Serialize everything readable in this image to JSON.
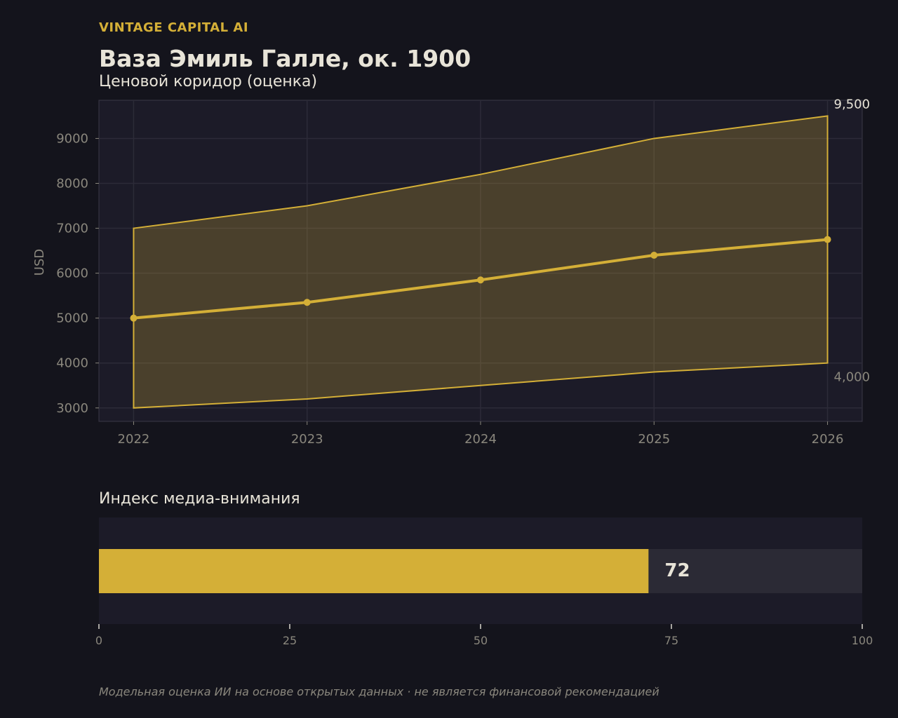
{
  "header": {
    "brand": "VINTAGE CAPITAL AI",
    "title": "Ваза Эмиль Галле, ок. 1900",
    "subtitle": "Ценовой коридор (оценка)"
  },
  "colors": {
    "accent": "#d4af37",
    "background": "#14141c",
    "panel": "#1c1b28",
    "text": "#e8e4d8",
    "muted": "#8a877d"
  },
  "chart_data": [
    {
      "type": "area",
      "title": "Ценовой коридор (оценка)",
      "ylabel": "USD",
      "xlabel": "",
      "x": [
        2022,
        2023,
        2024,
        2025,
        2026
      ],
      "x_ticks": [
        "2022",
        "2023",
        "2024",
        "2025",
        "2026"
      ],
      "y_ticks": [
        3000,
        4000,
        5000,
        6000,
        7000,
        8000,
        9000
      ],
      "ylim": [
        2700,
        9850
      ],
      "xlim": [
        2021.8,
        2026.2
      ],
      "grid": true,
      "series": [
        {
          "role": "upper",
          "values": [
            7000,
            7500,
            8200,
            9000,
            9500
          ]
        },
        {
          "role": "lower",
          "values": [
            3000,
            3200,
            3500,
            3800,
            4000
          ]
        },
        {
          "role": "estimate",
          "values": [
            5000,
            5350,
            5850,
            6400,
            6750
          ]
        }
      ],
      "annotations": [
        {
          "text": "9,500",
          "x": 2026,
          "y": 9500
        },
        {
          "text": "4,000",
          "x": 2026,
          "y": 4000
        }
      ]
    },
    {
      "type": "bar",
      "title": "Индекс медиа-внимания",
      "orientation": "horizontal",
      "values": [
        72
      ],
      "value_label": "72",
      "xlim": [
        0,
        100
      ],
      "x_ticks": [
        "0",
        "25",
        "50",
        "75",
        "100"
      ]
    }
  ],
  "footnote": "Модельная оценка ИИ на основе открытых данных · не является финансовой рекомендацией"
}
